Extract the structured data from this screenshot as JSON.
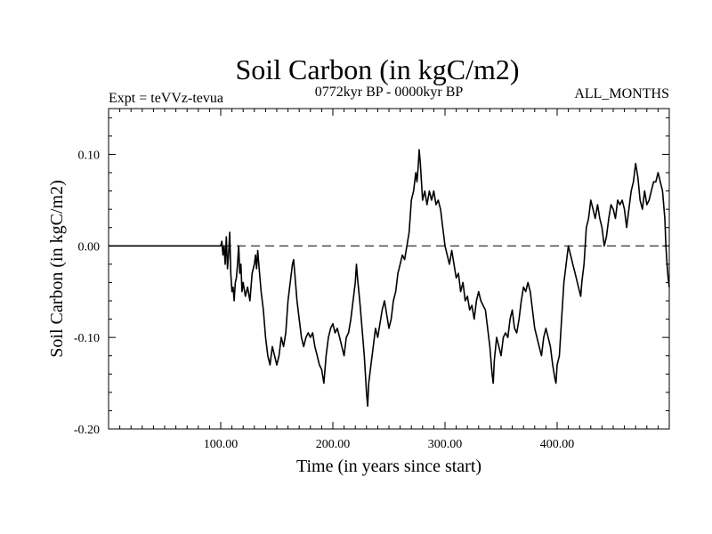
{
  "chart_data": {
    "type": "line",
    "title": "Soil Carbon (in kgC/m2)",
    "subtitle_left": "Expt = teVVz-tevua",
    "subtitle_center": "0772kyr BP - 0000kyr BP",
    "subtitle_right": "ALL_MONTHS",
    "xlabel": "Time (in years since start)",
    "ylabel": "Soil Carbon (in kgC/m2)",
    "xlim": [
      0,
      500
    ],
    "ylim": [
      -0.2,
      0.15
    ],
    "x_ticks": [
      100,
      200,
      300,
      400
    ],
    "x_tick_labels": [
      "100.00",
      "200.00",
      "300.00",
      "400.00"
    ],
    "y_ticks": [
      -0.2,
      -0.1,
      0.0,
      0.1
    ],
    "y_tick_labels": [
      "-0.20",
      "-0.10",
      "0.00",
      "0.10"
    ],
    "grid": false,
    "reference_line": {
      "y": 0.0,
      "style": "dashed"
    },
    "series": [
      {
        "points": [
          [
            0,
            0.0
          ],
          [
            100,
            0.0
          ],
          [
            101,
            0.005
          ],
          [
            102,
            -0.01
          ],
          [
            103,
            0.0
          ],
          [
            104,
            -0.02
          ],
          [
            105,
            0.01
          ],
          [
            106,
            -0.025
          ],
          [
            107,
            -0.01
          ],
          [
            108,
            0.015
          ],
          [
            109,
            -0.03
          ],
          [
            110,
            -0.05
          ],
          [
            111,
            -0.045
          ],
          [
            112,
            -0.06
          ],
          [
            113,
            -0.04
          ],
          [
            114,
            -0.035
          ],
          [
            115,
            -0.02
          ],
          [
            116,
            0.0
          ],
          [
            117,
            -0.03
          ],
          [
            118,
            -0.02
          ],
          [
            119,
            -0.05
          ],
          [
            120,
            -0.04
          ],
          [
            122,
            -0.055
          ],
          [
            124,
            -0.045
          ],
          [
            126,
            -0.06
          ],
          [
            128,
            -0.03
          ],
          [
            130,
            -0.02
          ],
          [
            131,
            -0.01
          ],
          [
            132,
            -0.025
          ],
          [
            133,
            -0.005
          ],
          [
            134,
            -0.02
          ],
          [
            136,
            -0.05
          ],
          [
            138,
            -0.07
          ],
          [
            140,
            -0.1
          ],
          [
            142,
            -0.12
          ],
          [
            144,
            -0.13
          ],
          [
            146,
            -0.11
          ],
          [
            148,
            -0.12
          ],
          [
            150,
            -0.13
          ],
          [
            152,
            -0.12
          ],
          [
            154,
            -0.1
          ],
          [
            156,
            -0.11
          ],
          [
            158,
            -0.095
          ],
          [
            160,
            -0.06
          ],
          [
            162,
            -0.04
          ],
          [
            164,
            -0.02
          ],
          [
            165,
            -0.015
          ],
          [
            166,
            -0.03
          ],
          [
            168,
            -0.06
          ],
          [
            170,
            -0.08
          ],
          [
            172,
            -0.1
          ],
          [
            174,
            -0.11
          ],
          [
            176,
            -0.1
          ],
          [
            178,
            -0.095
          ],
          [
            180,
            -0.1
          ],
          [
            182,
            -0.095
          ],
          [
            184,
            -0.11
          ],
          [
            186,
            -0.12
          ],
          [
            188,
            -0.13
          ],
          [
            190,
            -0.135
          ],
          [
            192,
            -0.15
          ],
          [
            194,
            -0.12
          ],
          [
            196,
            -0.1
          ],
          [
            198,
            -0.09
          ],
          [
            200,
            -0.085
          ],
          [
            202,
            -0.095
          ],
          [
            204,
            -0.09
          ],
          [
            206,
            -0.1
          ],
          [
            208,
            -0.11
          ],
          [
            210,
            -0.12
          ],
          [
            212,
            -0.1
          ],
          [
            214,
            -0.095
          ],
          [
            216,
            -0.08
          ],
          [
            218,
            -0.06
          ],
          [
            220,
            -0.04
          ],
          [
            221,
            -0.02
          ],
          [
            222,
            -0.035
          ],
          [
            224,
            -0.06
          ],
          [
            226,
            -0.09
          ],
          [
            228,
            -0.12
          ],
          [
            230,
            -0.16
          ],
          [
            231,
            -0.175
          ],
          [
            232,
            -0.15
          ],
          [
            234,
            -0.13
          ],
          [
            236,
            -0.11
          ],
          [
            238,
            -0.09
          ],
          [
            240,
            -0.1
          ],
          [
            242,
            -0.085
          ],
          [
            244,
            -0.07
          ],
          [
            246,
            -0.06
          ],
          [
            248,
            -0.075
          ],
          [
            250,
            -0.09
          ],
          [
            252,
            -0.08
          ],
          [
            254,
            -0.06
          ],
          [
            256,
            -0.05
          ],
          [
            258,
            -0.03
          ],
          [
            260,
            -0.02
          ],
          [
            262,
            -0.01
          ],
          [
            264,
            -0.015
          ],
          [
            266,
            0.0
          ],
          [
            268,
            0.015
          ],
          [
            270,
            0.05
          ],
          [
            272,
            0.06
          ],
          [
            274,
            0.08
          ],
          [
            275,
            0.07
          ],
          [
            276,
            0.085
          ],
          [
            277,
            0.105
          ],
          [
            278,
            0.09
          ],
          [
            280,
            0.05
          ],
          [
            282,
            0.06
          ],
          [
            284,
            0.045
          ],
          [
            286,
            0.06
          ],
          [
            288,
            0.05
          ],
          [
            290,
            0.06
          ],
          [
            292,
            0.045
          ],
          [
            294,
            0.05
          ],
          [
            296,
            0.04
          ],
          [
            298,
            0.02
          ],
          [
            300,
            0.0
          ],
          [
            302,
            -0.01
          ],
          [
            304,
            -0.02
          ],
          [
            306,
            -0.005
          ],
          [
            308,
            -0.02
          ],
          [
            310,
            -0.035
          ],
          [
            312,
            -0.03
          ],
          [
            314,
            -0.05
          ],
          [
            316,
            -0.04
          ],
          [
            318,
            -0.06
          ],
          [
            320,
            -0.055
          ],
          [
            322,
            -0.07
          ],
          [
            324,
            -0.065
          ],
          [
            326,
            -0.08
          ],
          [
            328,
            -0.06
          ],
          [
            330,
            -0.05
          ],
          [
            332,
            -0.06
          ],
          [
            334,
            -0.065
          ],
          [
            336,
            -0.07
          ],
          [
            338,
            -0.09
          ],
          [
            340,
            -0.11
          ],
          [
            342,
            -0.14
          ],
          [
            343,
            -0.15
          ],
          [
            344,
            -0.125
          ],
          [
            346,
            -0.1
          ],
          [
            348,
            -0.11
          ],
          [
            350,
            -0.12
          ],
          [
            352,
            -0.1
          ],
          [
            354,
            -0.095
          ],
          [
            356,
            -0.1
          ],
          [
            358,
            -0.08
          ],
          [
            360,
            -0.07
          ],
          [
            362,
            -0.09
          ],
          [
            364,
            -0.095
          ],
          [
            366,
            -0.08
          ],
          [
            368,
            -0.06
          ],
          [
            370,
            -0.045
          ],
          [
            372,
            -0.05
          ],
          [
            374,
            -0.04
          ],
          [
            376,
            -0.05
          ],
          [
            378,
            -0.07
          ],
          [
            380,
            -0.09
          ],
          [
            382,
            -0.1
          ],
          [
            384,
            -0.11
          ],
          [
            386,
            -0.12
          ],
          [
            388,
            -0.1
          ],
          [
            390,
            -0.09
          ],
          [
            392,
            -0.1
          ],
          [
            394,
            -0.11
          ],
          [
            396,
            -0.13
          ],
          [
            398,
            -0.145
          ],
          [
            399,
            -0.15
          ],
          [
            400,
            -0.13
          ],
          [
            402,
            -0.12
          ],
          [
            404,
            -0.08
          ],
          [
            406,
            -0.04
          ],
          [
            408,
            -0.02
          ],
          [
            410,
            0.0
          ],
          [
            412,
            -0.01
          ],
          [
            414,
            -0.02
          ],
          [
            416,
            -0.03
          ],
          [
            418,
            -0.04
          ],
          [
            420,
            -0.05
          ],
          [
            421,
            -0.055
          ],
          [
            422,
            -0.04
          ],
          [
            424,
            -0.02
          ],
          [
            426,
            0.02
          ],
          [
            428,
            0.03
          ],
          [
            430,
            0.05
          ],
          [
            432,
            0.04
          ],
          [
            434,
            0.03
          ],
          [
            436,
            0.045
          ],
          [
            438,
            0.03
          ],
          [
            440,
            0.02
          ],
          [
            442,
            0.0
          ],
          [
            444,
            0.01
          ],
          [
            446,
            0.03
          ],
          [
            448,
            0.045
          ],
          [
            450,
            0.04
          ],
          [
            452,
            0.03
          ],
          [
            454,
            0.05
          ],
          [
            456,
            0.045
          ],
          [
            458,
            0.05
          ],
          [
            460,
            0.04
          ],
          [
            462,
            0.02
          ],
          [
            464,
            0.04
          ],
          [
            466,
            0.06
          ],
          [
            468,
            0.07
          ],
          [
            470,
            0.09
          ],
          [
            472,
            0.075
          ],
          [
            474,
            0.05
          ],
          [
            476,
            0.04
          ],
          [
            478,
            0.06
          ],
          [
            480,
            0.045
          ],
          [
            482,
            0.05
          ],
          [
            484,
            0.06
          ],
          [
            486,
            0.07
          ],
          [
            488,
            0.07
          ],
          [
            490,
            0.08
          ],
          [
            492,
            0.07
          ],
          [
            494,
            0.06
          ],
          [
            496,
            0.03
          ],
          [
            497,
            0.0
          ],
          [
            498,
            -0.02
          ],
          [
            499,
            -0.035
          ],
          [
            500,
            -0.045
          ]
        ]
      }
    ]
  }
}
